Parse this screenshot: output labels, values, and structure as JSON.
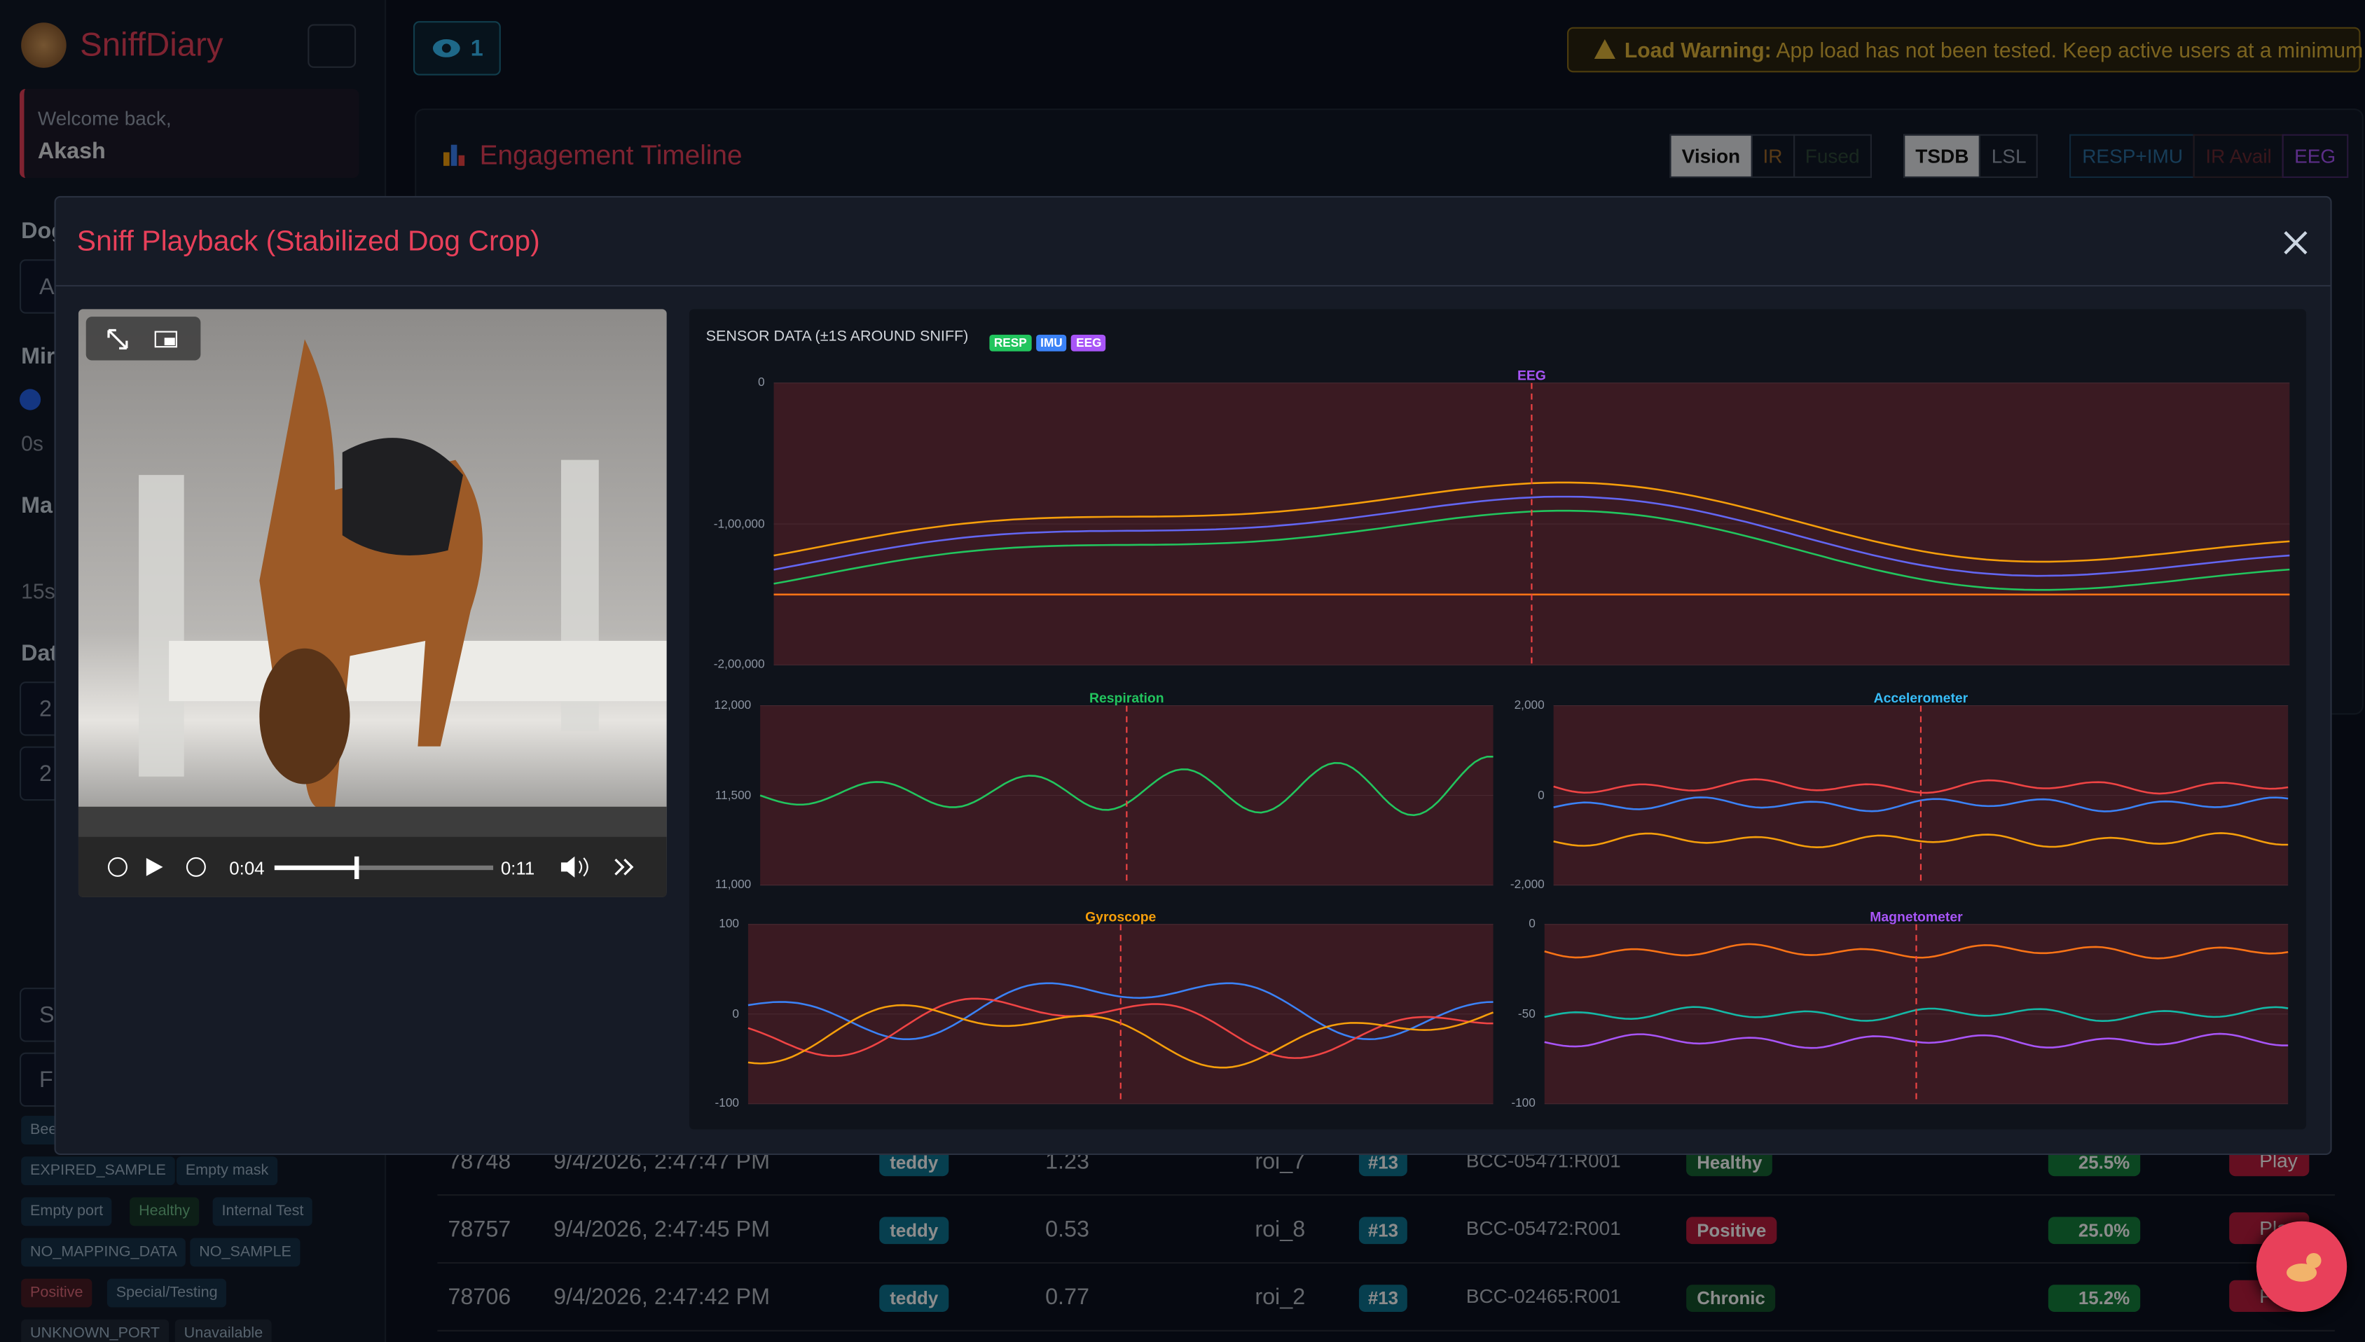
{
  "sidebar": {
    "brand": "SniffDiary",
    "welcome": "Welcome back,",
    "user": "Akash",
    "labels": [
      "Dog",
      "Mir",
      "0s",
      "Ma",
      "15s",
      "Dat"
    ],
    "inputs": [
      "A",
      "2",
      "2",
      "S",
      "Fi"
    ],
    "tags": [
      "Bee",
      "EXPIRED_SAMPLE",
      "Empty mask",
      "Empty port",
      "Healthy",
      "Internal Test",
      "NO_MAPPING_DATA",
      "NO_SAMPLE",
      "Positive",
      "Special/Testing",
      "UNKNOWN_PORT",
      "Unavailable"
    ]
  },
  "topbar": {
    "viewers": "1",
    "warning_label": "Load Warning:",
    "warning_text": "App load has not been tested. Keep active users at a minimum."
  },
  "timeline": {
    "title": "Engagement Timeline",
    "toggles": [
      "Vision",
      "IR",
      "Fused",
      "TSDB",
      "LSL",
      "RESP+IMU",
      "IR Avail",
      "EEG"
    ]
  },
  "table": {
    "rows": [
      [
        "78748",
        "9/4/2026, 2:47:47 PM",
        "teddy",
        "1.23",
        "roi_7",
        "#13",
        "BCC-05471:R001",
        "Healthy",
        "25.5%",
        "Play"
      ],
      [
        "78757",
        "9/4/2026, 2:47:45 PM",
        "teddy",
        "0.53",
        "roi_8",
        "#13",
        "BCC-05472:R001",
        "Positive",
        "25.0%",
        "Play"
      ],
      [
        "78706",
        "9/4/2026, 2:47:42 PM",
        "teddy",
        "0.77",
        "roi_2",
        "#13",
        "BCC-02465:R001",
        "Chronic",
        "15.2%",
        "Play"
      ]
    ]
  },
  "modal": {
    "title": "Sniff Playback (Stabilized Dog Crop)",
    "video": {
      "current": "0:04",
      "duration": "0:11"
    },
    "sensor": {
      "heading": "SENSOR DATA (±1S AROUND SNIFF)",
      "badges": [
        "RESP",
        "IMU",
        "EEG"
      ],
      "panels": [
        {
          "title": "EEG",
          "yticks": [
            "0",
            "-1,00,000",
            "-2,00,000"
          ]
        },
        {
          "title": "Respiration",
          "yticks": [
            "12,000",
            "11,500",
            "11,000"
          ]
        },
        {
          "title": "Accelerometer",
          "yticks": [
            "2,000",
            "0",
            "-2,000"
          ]
        },
        {
          "title": "Gyroscope",
          "yticks": [
            "100",
            "0",
            "-100"
          ]
        },
        {
          "title": "Magnetometer",
          "yticks": [
            "0",
            "-50",
            "-100"
          ]
        }
      ]
    }
  }
}
